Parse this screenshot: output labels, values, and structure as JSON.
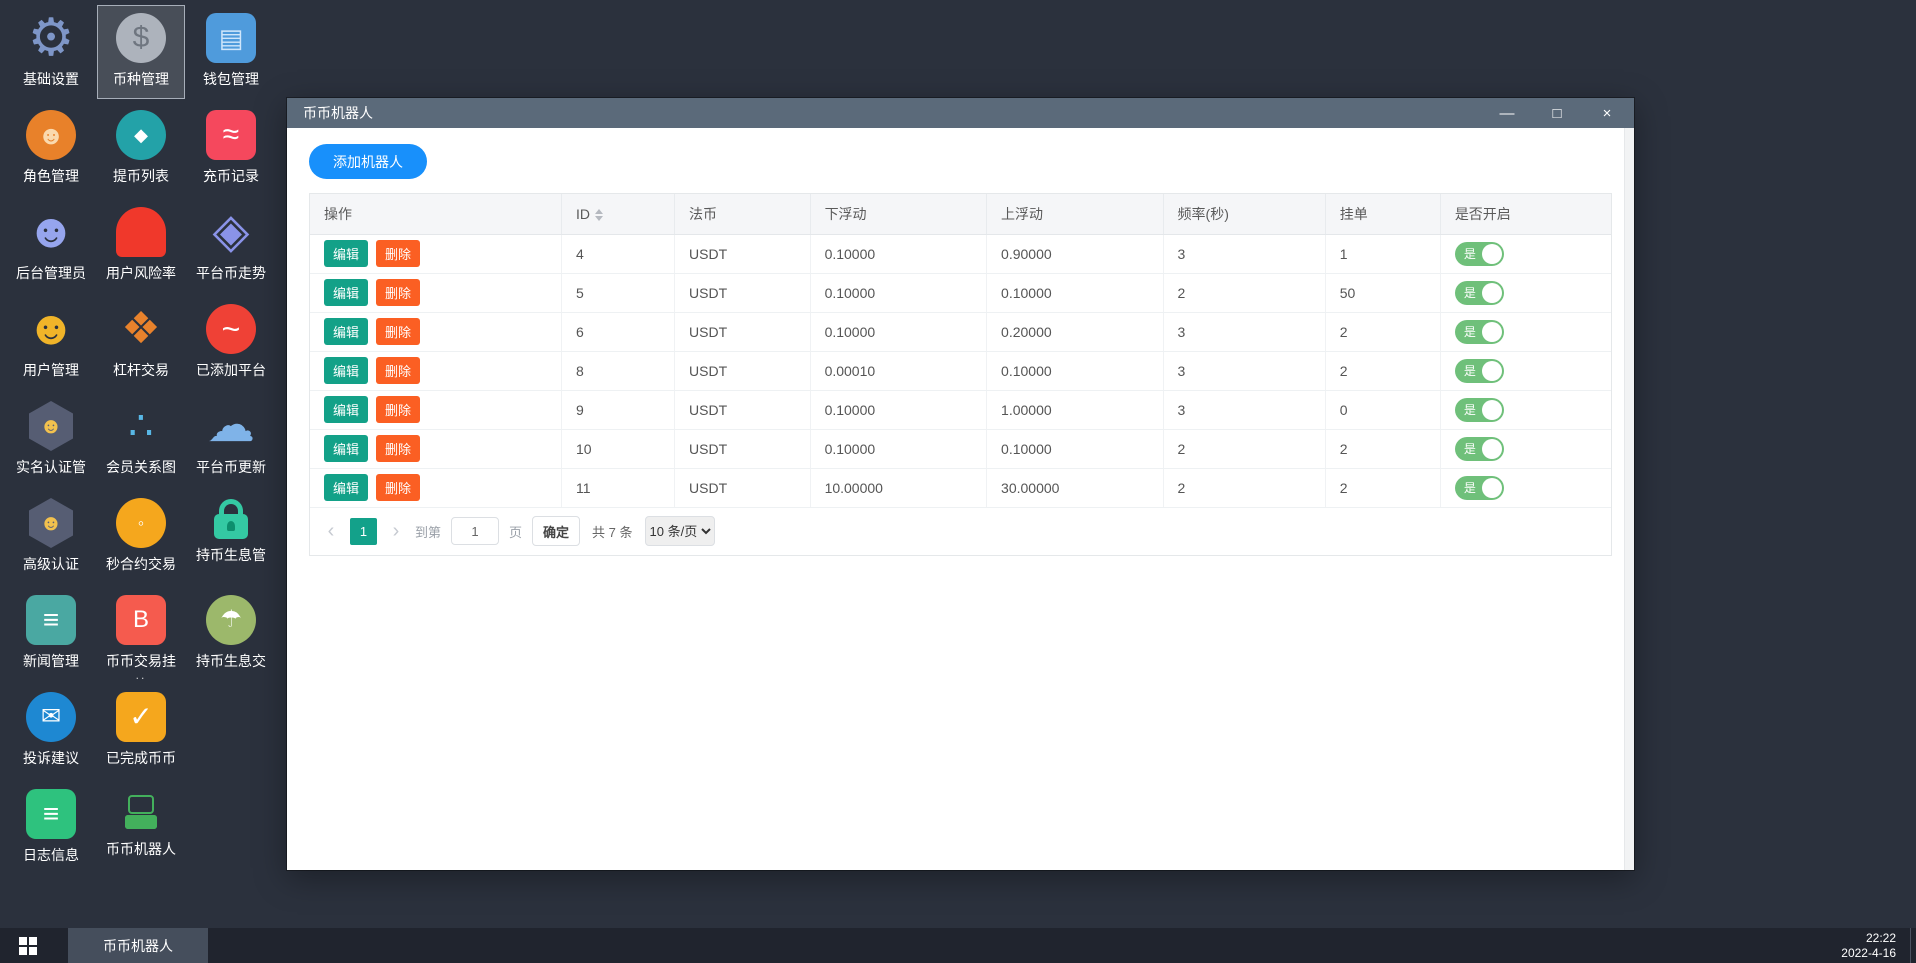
{
  "colors": {
    "desktop-bg": "#2b313d",
    "titlebar": "#5b6a7a",
    "accent-blue": "#1890fb",
    "teal": "#13a18a",
    "edit-green": "#13a188",
    "delete-orange": "#fb5f23",
    "toggle-green": "#6fc07a",
    "taskbar-bg": "#20242e"
  },
  "desktop": {
    "items": [
      {
        "name": "basic-settings",
        "label": "基础设置",
        "icon": "gear-icon",
        "shape": "none",
        "glyph": "⚙",
        "color": "#7e96c8",
        "size": 52
      },
      {
        "name": "coin-management",
        "label": "币种管理",
        "icon": "dollar-icon",
        "shape": "circle",
        "bg": "#adb3bc",
        "glyph": "$",
        "color": "#6f7680",
        "size": 30,
        "selected": true
      },
      {
        "name": "wallet-management",
        "label": "钱包管理",
        "icon": "wallet-icon",
        "shape": "rounded",
        "bg": "#4f9bdc",
        "glyph": "▤",
        "color": "#cfe6fb",
        "size": 26
      },
      {
        "name": "role-management",
        "label": "角色管理",
        "icon": "roles-icon",
        "shape": "circle",
        "bg": "#e8812a",
        "glyph": "☻",
        "color": "#fad9ae",
        "size": 26
      },
      {
        "name": "withdraw-list",
        "label": "提币列表",
        "icon": "withdraw-icon",
        "shape": "circle",
        "bg": "#23a2a8",
        "glyph": "◆",
        "color": "#ffffff",
        "size": 18
      },
      {
        "name": "deposit-records",
        "label": "充币记录",
        "icon": "deposit-icon",
        "shape": "rounded",
        "bg": "#f5485d",
        "glyph": "≈",
        "color": "#ffffff",
        "size": 30
      },
      {
        "name": "admin-accounts",
        "label": "后台管理员",
        "icon": "admin-icon",
        "shape": "none",
        "glyph": "☻",
        "color": "#96a5ee",
        "size": 48
      },
      {
        "name": "user-risk-rate",
        "label": "用户风险率",
        "icon": "siren-icon",
        "shape": "rounded",
        "bg": "#f0382b",
        "radius": "50% 50% 12% 12%",
        "glyph": "",
        "size": 12
      },
      {
        "name": "platform-coin-trend",
        "label": "平台币走势",
        "icon": "layers-icon",
        "shape": "none",
        "glyph": "◈",
        "color": "#8a93e8",
        "size": 48
      },
      {
        "name": "user-management",
        "label": "用户管理",
        "icon": "user-search-icon",
        "shape": "none",
        "glyph": "☻",
        "color": "#f0b429",
        "size": 48
      },
      {
        "name": "leverage-trading",
        "label": "杠杆交易",
        "icon": "stack-icon",
        "shape": "none",
        "glyph": "❖",
        "color": "#e8822c",
        "size": 44
      },
      {
        "name": "added-platforms",
        "label": "已添加平台",
        "icon": "trend-circle-icon",
        "shape": "circle",
        "bg": "#ef4136",
        "glyph": "~",
        "color": "#ffffff",
        "size": 32
      },
      {
        "name": "kyc-management",
        "label": "实名认证管",
        "icon": "id-badge-icon",
        "shape": "hex",
        "bg": "#565d73",
        "glyph": "☻",
        "color": "#f2c14e",
        "size": 22
      },
      {
        "name": "member-relation-graph",
        "label": "会员关系图",
        "icon": "network-icon",
        "shape": "none",
        "glyph": "∴",
        "color": "#58b7e6",
        "size": 40
      },
      {
        "name": "platform-coin-update",
        "label": "平台币更新",
        "icon": "cloud-clock-icon",
        "shape": "none",
        "glyph": "☁",
        "color": "#7fb3e8",
        "size": 48
      },
      {
        "name": "advanced-kyc",
        "label": "高级认证",
        "icon": "id-badge-icon",
        "shape": "hex",
        "bg": "#565d73",
        "glyph": "☻",
        "color": "#f2c14e",
        "size": 22
      },
      {
        "name": "seconds-contract",
        "label": "秒合约交易",
        "icon": "stopwatch-icon",
        "shape": "circle",
        "bg": "#f5a71d",
        "glyph": "◦",
        "color": "#ffffff",
        "size": 18
      },
      {
        "name": "hold-interest-management",
        "label": "持币生息管",
        "icon": "lock-icon",
        "shape": "none",
        "cls": "lock"
      },
      {
        "name": "news-management",
        "label": "新闻管理",
        "icon": "news-doc-icon",
        "shape": "rounded",
        "bg": "#4aa8a2",
        "glyph": "≡",
        "color": "#ffffff",
        "size": 28
      },
      {
        "name": "coin-trade-orders",
        "label": "币币交易挂",
        "label2": "..",
        "icon": "btc-jar-icon",
        "shape": "rounded",
        "bg": "#f55b4e",
        "glyph": "B",
        "color": "#ffffff",
        "size": 24
      },
      {
        "name": "hold-interest-trade",
        "label": "持币生息交",
        "icon": "umbrella-icon",
        "shape": "circle",
        "bg": "#9cb86b",
        "glyph": "☂",
        "color": "#ffffff",
        "size": 24
      },
      {
        "name": "complaints",
        "label": "投诉建议",
        "icon": "envelope-icon",
        "shape": "circle",
        "bg": "#1e88d2",
        "glyph": "✉",
        "color": "#ffffff",
        "size": 24
      },
      {
        "name": "completed-trades",
        "label": "已完成币币",
        "icon": "check-icon",
        "shape": "rounded",
        "bg": "#f5a71d",
        "glyph": "✓",
        "color": "#ffffff",
        "size": 28
      },
      {
        "name": "log-info",
        "label": "日志信息",
        "icon": "log-clock-icon",
        "shape": "rounded",
        "bg": "#2ec27e",
        "glyph": "≡",
        "color": "#ffffff",
        "size": 28,
        "newRow": true
      },
      {
        "name": "coin-robot",
        "label": "币币机器人",
        "icon": "robot-icon",
        "shape": "none",
        "cls": "robot"
      }
    ]
  },
  "window": {
    "title": "币币机器人",
    "controls": {
      "minimize": "—",
      "maximize": "□",
      "close": "×"
    },
    "add_button": "添加机器人",
    "table": {
      "headers": [
        {
          "key": "actions",
          "label": "操作"
        },
        {
          "key": "id",
          "label": "ID",
          "sortable": true
        },
        {
          "key": "currency",
          "label": "法币"
        },
        {
          "key": "float-down",
          "label": "下浮动"
        },
        {
          "key": "float-up",
          "label": "上浮动"
        },
        {
          "key": "frequency",
          "label": "频率(秒)"
        },
        {
          "key": "orders",
          "label": "挂单"
        },
        {
          "key": "enabled",
          "label": "是否开启"
        }
      ],
      "edit_label": "编辑",
      "delete_label": "删除",
      "toggle_on_label": "是",
      "rows": [
        {
          "id": "4",
          "currency": "USDT",
          "float_down": "0.10000",
          "float_up": "0.90000",
          "frequency": "3",
          "orders": "1",
          "enabled": true
        },
        {
          "id": "5",
          "currency": "USDT",
          "float_down": "0.10000",
          "float_up": "0.10000",
          "frequency": "2",
          "orders": "50",
          "enabled": true
        },
        {
          "id": "6",
          "currency": "USDT",
          "float_down": "0.10000",
          "float_up": "0.20000",
          "frequency": "3",
          "orders": "2",
          "enabled": true
        },
        {
          "id": "8",
          "currency": "USDT",
          "float_down": "0.00010",
          "float_up": "0.10000",
          "frequency": "3",
          "orders": "2",
          "enabled": true
        },
        {
          "id": "9",
          "currency": "USDT",
          "float_down": "0.10000",
          "float_up": "1.00000",
          "frequency": "3",
          "orders": "0",
          "enabled": true
        },
        {
          "id": "10",
          "currency": "USDT",
          "float_down": "0.10000",
          "float_up": "0.10000",
          "frequency": "2",
          "orders": "2",
          "enabled": true
        },
        {
          "id": "11",
          "currency": "USDT",
          "float_down": "10.00000",
          "float_up": "30.00000",
          "frequency": "2",
          "orders": "2",
          "enabled": true
        }
      ]
    },
    "pagination": {
      "prev": "‹",
      "page": "1",
      "next": "›",
      "goto_prefix": "到第",
      "goto_value": "1",
      "goto_suffix": "页",
      "confirm": "确定",
      "total": "共 7 条",
      "page_size": "10 条/页"
    }
  },
  "taskbar": {
    "app": "币币机器人",
    "time": "22:22",
    "date": "2022-4-16"
  }
}
